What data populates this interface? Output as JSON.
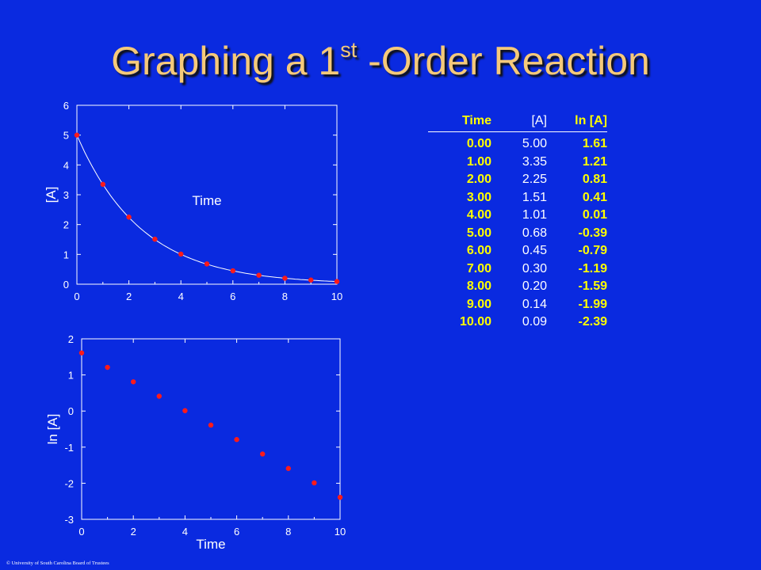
{
  "slide": {
    "title_main": "Graphing a 1",
    "title_sup": "st",
    "title_rest": " -Order Reaction",
    "copyright": "© University of South Carolina Board of Trustees"
  },
  "colors": {
    "background": "#0a2ae0",
    "title": "#f5c97a",
    "highlight": "#ffff00",
    "points": "#ff1a1a",
    "curve": "#ffffff"
  },
  "table": {
    "headers": [
      "Time",
      "[A]",
      "ln [A]"
    ],
    "rows": [
      [
        "0.00",
        "5.00",
        "1.61"
      ],
      [
        "1.00",
        "3.35",
        "1.21"
      ],
      [
        "2.00",
        "2.25",
        "0.81"
      ],
      [
        "3.00",
        "1.51",
        "0.41"
      ],
      [
        "4.00",
        "1.01",
        "0.01"
      ],
      [
        "5.00",
        "0.68",
        "-0.39"
      ],
      [
        "6.00",
        "0.45",
        "-0.79"
      ],
      [
        "7.00",
        "0.30",
        "-1.19"
      ],
      [
        "8.00",
        "0.20",
        "-1.59"
      ],
      [
        "9.00",
        "0.14",
        "-1.99"
      ],
      [
        "10.00",
        "0.09",
        "-2.39"
      ]
    ]
  },
  "chart_data": [
    {
      "type": "scatter",
      "xlabel": "Time",
      "ylabel": "[A]",
      "x": [
        0,
        1,
        2,
        3,
        4,
        5,
        6,
        7,
        8,
        9,
        10
      ],
      "y": [
        5.0,
        3.35,
        2.25,
        1.51,
        1.01,
        0.68,
        0.45,
        0.3,
        0.2,
        0.14,
        0.09
      ],
      "fit_curve": "exponential decay",
      "xlim": [
        0,
        10
      ],
      "ylim": [
        0,
        6
      ],
      "xticks": [
        0,
        2,
        4,
        6,
        8,
        10
      ],
      "yticks": [
        0,
        1,
        2,
        3,
        4,
        5,
        6
      ],
      "grid": false
    },
    {
      "type": "scatter",
      "xlabel": "Time",
      "ylabel": "ln [A]",
      "x": [
        0,
        1,
        2,
        3,
        4,
        5,
        6,
        7,
        8,
        9,
        10
      ],
      "y": [
        1.61,
        1.21,
        0.81,
        0.41,
        0.01,
        -0.39,
        -0.79,
        -1.19,
        -1.59,
        -1.99,
        -2.39
      ],
      "xlim": [
        0,
        10
      ],
      "ylim": [
        -3,
        2
      ],
      "xticks": [
        0,
        2,
        4,
        6,
        8,
        10
      ],
      "yticks": [
        -3,
        -2,
        -1,
        0,
        1,
        2
      ],
      "grid": false
    }
  ]
}
